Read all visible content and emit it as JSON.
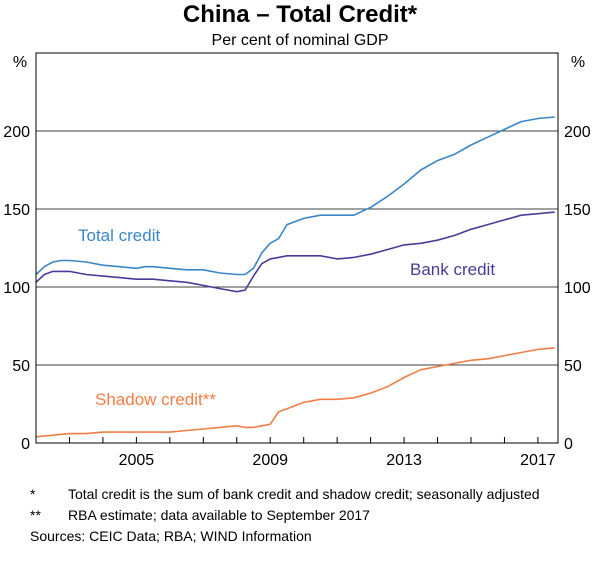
{
  "chart_data": {
    "type": "line",
    "title": "China – Total Credit*",
    "subtitle": "Per cent of nominal GDP",
    "ylabel_left": "%",
    "ylabel_right": "%",
    "ylim": [
      0,
      250
    ],
    "yticks": [
      0,
      50,
      100,
      150,
      200
    ],
    "xlim": [
      2002,
      2017.6
    ],
    "xticks": [
      2005,
      2009,
      2013,
      2017
    ],
    "grid": true,
    "series": [
      {
        "name": "Total credit",
        "color": "#3A86C8",
        "x": [
          2002.0,
          2002.25,
          2002.5,
          2002.75,
          2003.0,
          2003.5,
          2004.0,
          2004.5,
          2005.0,
          2005.25,
          2005.5,
          2006.0,
          2006.5,
          2007.0,
          2007.5,
          2008.0,
          2008.25,
          2008.5,
          2008.75,
          2009.0,
          2009.25,
          2009.5,
          2010.0,
          2010.5,
          2011.0,
          2011.5,
          2012.0,
          2012.5,
          2013.0,
          2013.5,
          2014.0,
          2014.5,
          2015.0,
          2015.5,
          2016.0,
          2016.5,
          2017.0,
          2017.5
        ],
        "y": [
          108,
          113,
          116,
          117,
          117,
          116,
          114,
          113,
          112,
          113,
          113,
          112,
          111,
          111,
          109,
          108,
          108,
          112,
          122,
          128,
          131,
          140,
          144,
          146,
          146,
          146,
          151,
          158,
          166,
          175,
          181,
          185,
          191,
          196,
          201,
          206,
          208,
          209
        ]
      },
      {
        "name": "Bank credit",
        "color": "#4B3A9A",
        "x": [
          2002.0,
          2002.25,
          2002.5,
          2002.75,
          2003.0,
          2003.5,
          2004.0,
          2004.5,
          2005.0,
          2005.25,
          2005.5,
          2006.0,
          2006.5,
          2007.0,
          2007.5,
          2008.0,
          2008.25,
          2008.5,
          2008.75,
          2009.0,
          2009.25,
          2009.5,
          2010.0,
          2010.5,
          2011.0,
          2011.5,
          2012.0,
          2012.5,
          2013.0,
          2013.5,
          2014.0,
          2014.5,
          2015.0,
          2015.5,
          2016.0,
          2016.5,
          2017.0,
          2017.5
        ],
        "y": [
          103,
          108,
          110,
          110,
          110,
          108,
          107,
          106,
          105,
          105,
          105,
          104,
          103,
          101,
          99,
          97,
          98,
          107,
          115,
          118,
          119,
          120,
          120,
          120,
          118,
          119,
          121,
          124,
          127,
          128,
          130,
          133,
          137,
          140,
          143,
          146,
          147,
          148
        ]
      },
      {
        "name": "Shadow credit**",
        "color": "#F07E45",
        "x": [
          2002.0,
          2002.5,
          2003.0,
          2003.5,
          2004.0,
          2004.5,
          2005.0,
          2005.5,
          2006.0,
          2006.5,
          2007.0,
          2007.5,
          2008.0,
          2008.25,
          2008.5,
          2008.75,
          2009.0,
          2009.25,
          2009.5,
          2010.0,
          2010.5,
          2011.0,
          2011.5,
          2012.0,
          2012.5,
          2013.0,
          2013.5,
          2014.0,
          2014.5,
          2015.0,
          2015.5,
          2016.0,
          2016.5,
          2017.0,
          2017.5
        ],
        "y": [
          4,
          5,
          6,
          6,
          7,
          7,
          7,
          7,
          7,
          8,
          9,
          10,
          11,
          10,
          10,
          11,
          12,
          20,
          22,
          26,
          28,
          28,
          29,
          32,
          36,
          42,
          47,
          49,
          51,
          53,
          54,
          56,
          58,
          60,
          61
        ]
      }
    ],
    "series_labels": [
      {
        "text": "Total credit",
        "color": "#3A86C8"
      },
      {
        "text": "Bank credit",
        "color": "#4B3A9A"
      },
      {
        "text": "Shadow credit**",
        "color": "#F07E45"
      }
    ]
  },
  "notes": [
    {
      "mark": "*",
      "text": "Total credit is the sum of bank credit and shadow credit; seasonally adjusted"
    },
    {
      "mark": "**",
      "text": "RBA estimate; data available to September 2017"
    }
  ],
  "sources": "Sources: CEIC Data; RBA; WIND Information"
}
